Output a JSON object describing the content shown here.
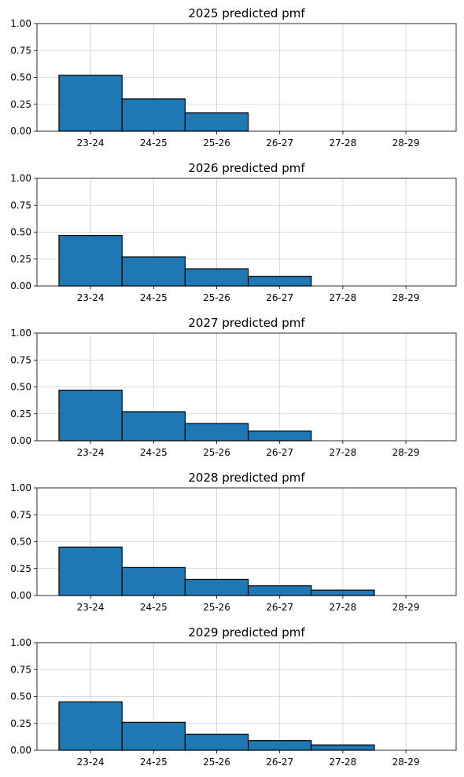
{
  "chart_data": [
    {
      "type": "bar",
      "title": "2025 predicted pmf",
      "categories": [
        "23-24",
        "24-25",
        "25-26",
        "26-27",
        "27-28",
        "28-29"
      ],
      "values": [
        0.52,
        0.3,
        0.17,
        0.0,
        0.0,
        0.0
      ],
      "ylim": [
        0,
        1
      ],
      "yticks": [
        "0.00",
        "0.25",
        "0.50",
        "0.75",
        "1.00"
      ],
      "grid": true,
      "bar_color": "#1f77b4",
      "edge_color": "#000000"
    },
    {
      "type": "bar",
      "title": "2026 predicted pmf",
      "categories": [
        "23-24",
        "24-25",
        "25-26",
        "26-27",
        "27-28",
        "28-29"
      ],
      "values": [
        0.47,
        0.27,
        0.16,
        0.09,
        0.0,
        0.0
      ],
      "ylim": [
        0,
        1
      ],
      "yticks": [
        "0.00",
        "0.25",
        "0.50",
        "0.75",
        "1.00"
      ],
      "grid": true,
      "bar_color": "#1f77b4",
      "edge_color": "#000000"
    },
    {
      "type": "bar",
      "title": "2027 predicted pmf",
      "categories": [
        "23-24",
        "24-25",
        "25-26",
        "26-27",
        "27-28",
        "28-29"
      ],
      "values": [
        0.47,
        0.27,
        0.16,
        0.09,
        0.0,
        0.0
      ],
      "ylim": [
        0,
        1
      ],
      "yticks": [
        "0.00",
        "0.25",
        "0.50",
        "0.75",
        "1.00"
      ],
      "grid": true,
      "bar_color": "#1f77b4",
      "edge_color": "#000000"
    },
    {
      "type": "bar",
      "title": "2028 predicted pmf",
      "categories": [
        "23-24",
        "24-25",
        "25-26",
        "26-27",
        "27-28",
        "28-29"
      ],
      "values": [
        0.45,
        0.26,
        0.15,
        0.09,
        0.05,
        0.0
      ],
      "ylim": [
        0,
        1
      ],
      "yticks": [
        "0.00",
        "0.25",
        "0.50",
        "0.75",
        "1.00"
      ],
      "grid": true,
      "bar_color": "#1f77b4",
      "edge_color": "#000000"
    },
    {
      "type": "bar",
      "title": "2029 predicted pmf",
      "categories": [
        "23-24",
        "24-25",
        "25-26",
        "26-27",
        "27-28",
        "28-29"
      ],
      "values": [
        0.45,
        0.26,
        0.15,
        0.09,
        0.05,
        0.0
      ],
      "ylim": [
        0,
        1
      ],
      "yticks": [
        "0.00",
        "0.25",
        "0.50",
        "0.75",
        "1.00"
      ],
      "grid": true,
      "bar_color": "#1f77b4",
      "edge_color": "#000000"
    }
  ]
}
